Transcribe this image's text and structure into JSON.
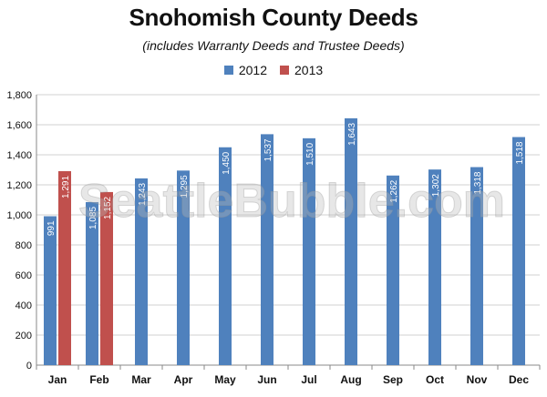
{
  "chart_data": {
    "type": "bar",
    "title": "Snohomish County Deeds",
    "subtitle": "(includes Warranty Deeds and Trustee Deeds)",
    "watermark": "SeattleBubble.com",
    "categories": [
      "Jan",
      "Feb",
      "Mar",
      "Apr",
      "May",
      "Jun",
      "Jul",
      "Aug",
      "Sep",
      "Oct",
      "Nov",
      "Dec"
    ],
    "series": [
      {
        "name": "2012",
        "color": "#4f81bd",
        "values": [
          991,
          1085,
          1243,
          1295,
          1450,
          1537,
          1510,
          1643,
          1262,
          1302,
          1318,
          1518
        ],
        "labels": [
          "991",
          "1,085",
          "1,243",
          "1,295",
          "1,450",
          "1,537",
          "1,510",
          "1,643",
          "1,262",
          "1,302",
          "1,318",
          "1,518"
        ]
      },
      {
        "name": "2013",
        "color": "#c0504d",
        "values": [
          1291,
          1152,
          null,
          null,
          null,
          null,
          null,
          null,
          null,
          null,
          null,
          null
        ],
        "labels": [
          "1,291",
          "1,152",
          "",
          "",
          "",
          "",
          "",
          "",
          "",
          "",
          "",
          ""
        ]
      }
    ],
    "ylim": [
      0,
      1800
    ],
    "yticks": [
      0,
      200,
      400,
      600,
      800,
      1000,
      1200,
      1400,
      1600,
      1800
    ],
    "ytick_labels": [
      "0",
      "200",
      "400",
      "600",
      "800",
      "1,000",
      "1,200",
      "1,400",
      "1,600",
      "1,800"
    ],
    "grid": true,
    "legend_position": "top-center"
  }
}
